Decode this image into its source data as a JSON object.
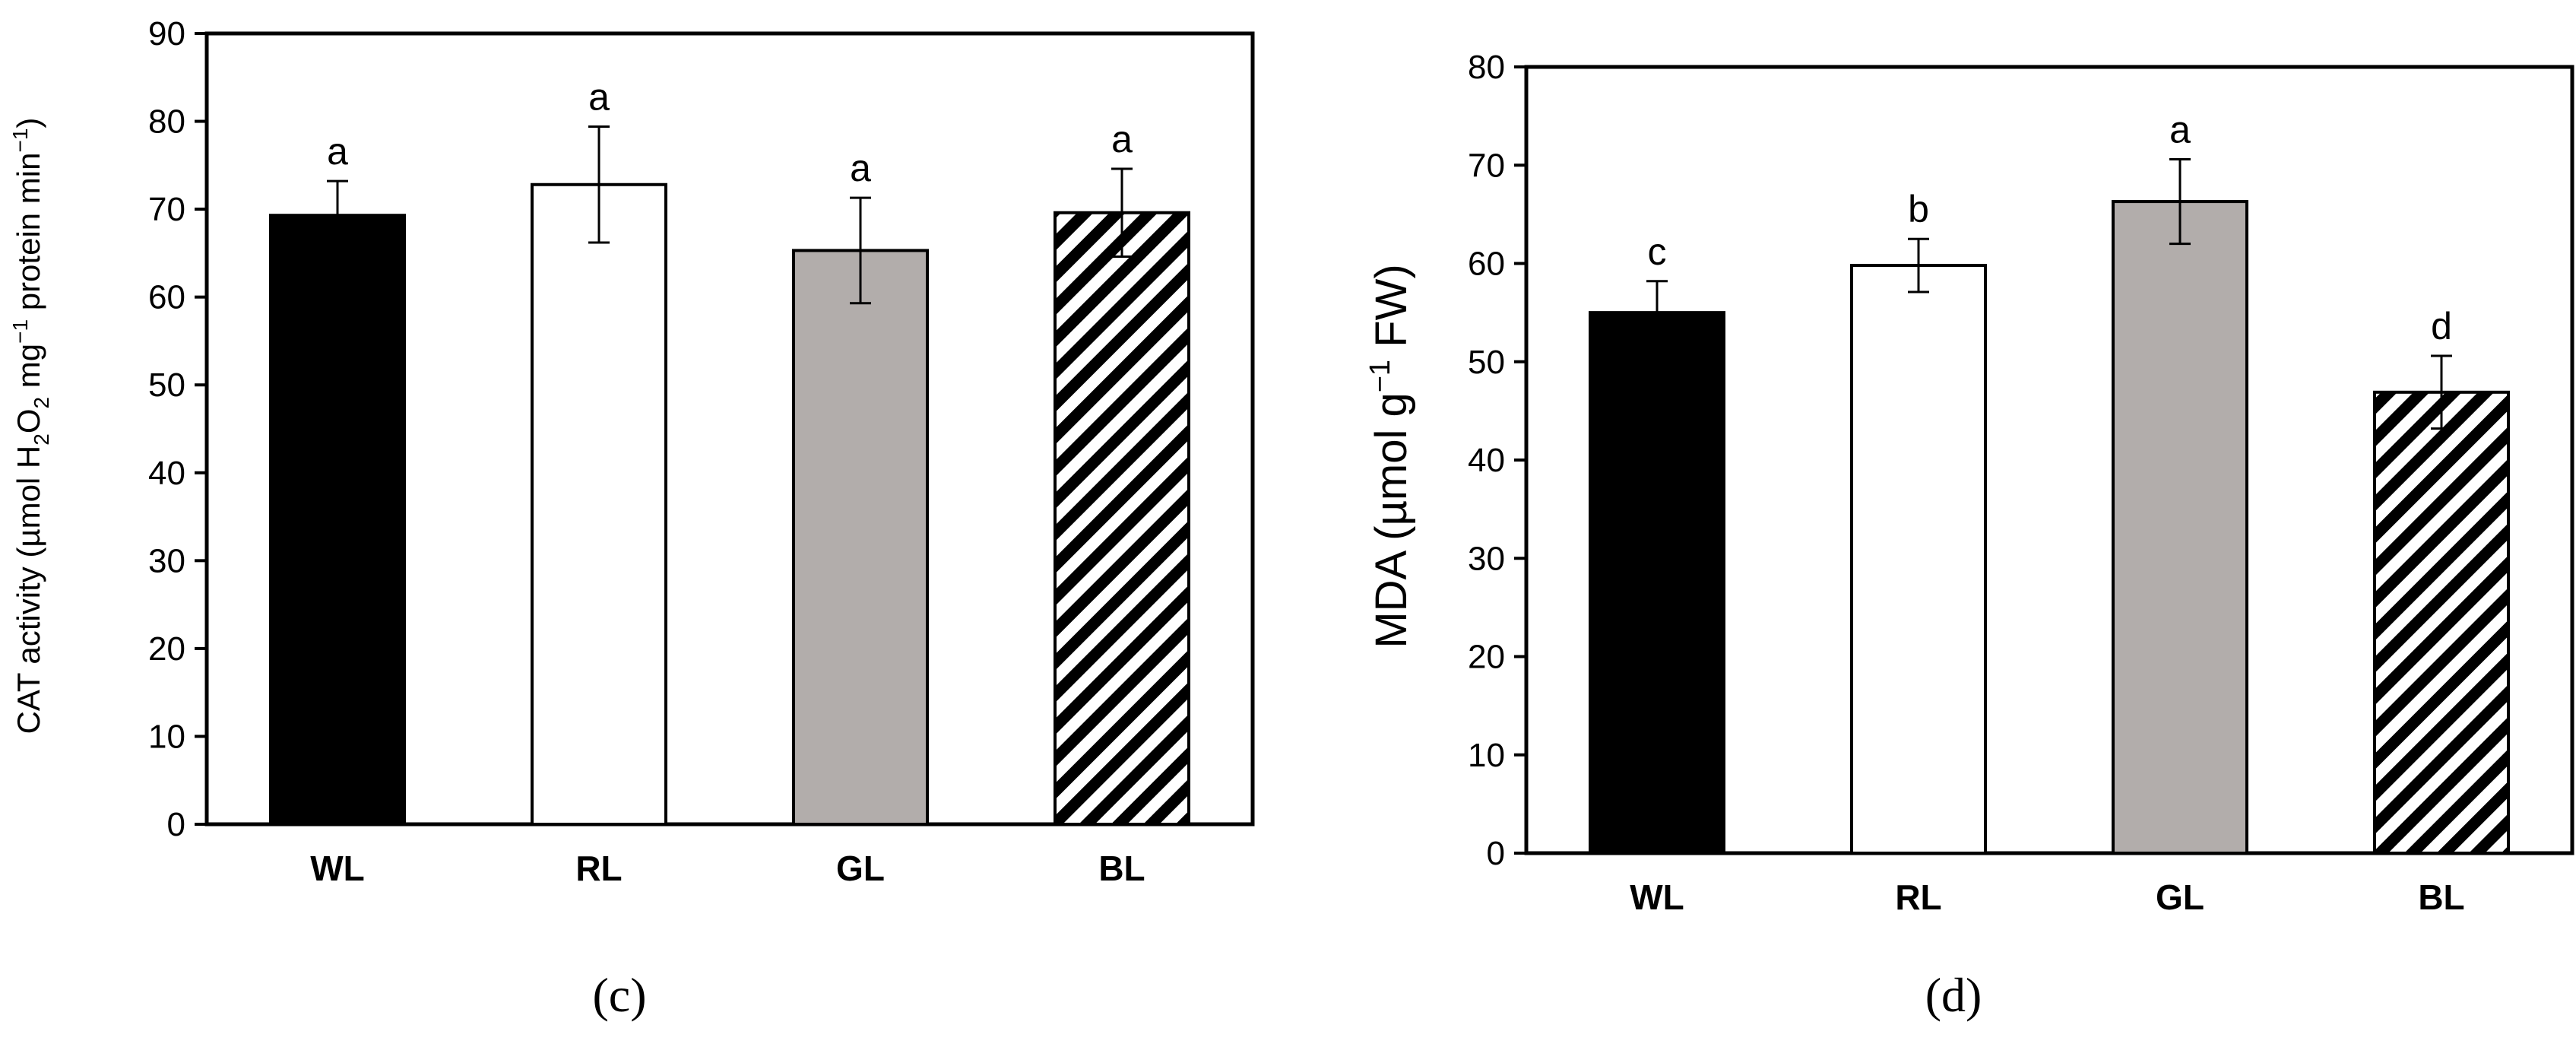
{
  "chart_data": [
    {
      "type": "bar",
      "panel_label": "(c)",
      "ylabel_main": "CAT activity  (µmol H",
      "ylabel_parts": [
        "CAT activity  (µmol H",
        "2",
        "O",
        "2",
        " mg",
        "−1",
        " protein min",
        "−1",
        ")"
      ],
      "categories": [
        "WL",
        "RL",
        "GL",
        "BL"
      ],
      "values": [
        69.3,
        72.8,
        65.3,
        69.6
      ],
      "errors": [
        3.9,
        6.6,
        6.0,
        5.0
      ],
      "letters": [
        "a",
        "a",
        "a",
        "a"
      ],
      "ylim": [
        0,
        90
      ],
      "yticks": [
        0,
        10,
        20,
        30,
        40,
        50,
        60,
        70,
        80,
        90
      ],
      "fills": [
        "#000000",
        "#ffffff",
        "#b2adab",
        "hatch"
      ]
    },
    {
      "type": "bar",
      "panel_label": "(d)",
      "ylabel_parts": [
        "MDA (µmol g",
        "−1",
        " FW)"
      ],
      "categories": [
        "WL",
        "RL",
        "GL",
        "BL"
      ],
      "values": [
        55.0,
        59.8,
        66.3,
        46.9
      ],
      "errors": [
        3.2,
        2.7,
        4.3,
        3.7
      ],
      "letters": [
        "c",
        "b",
        "a",
        "d"
      ],
      "ylim": [
        0,
        80
      ],
      "yticks": [
        0,
        10,
        20,
        30,
        40,
        50,
        60,
        70,
        80
      ],
      "fills": [
        "#000000",
        "#ffffff",
        "#b2adab",
        "hatch"
      ]
    }
  ]
}
